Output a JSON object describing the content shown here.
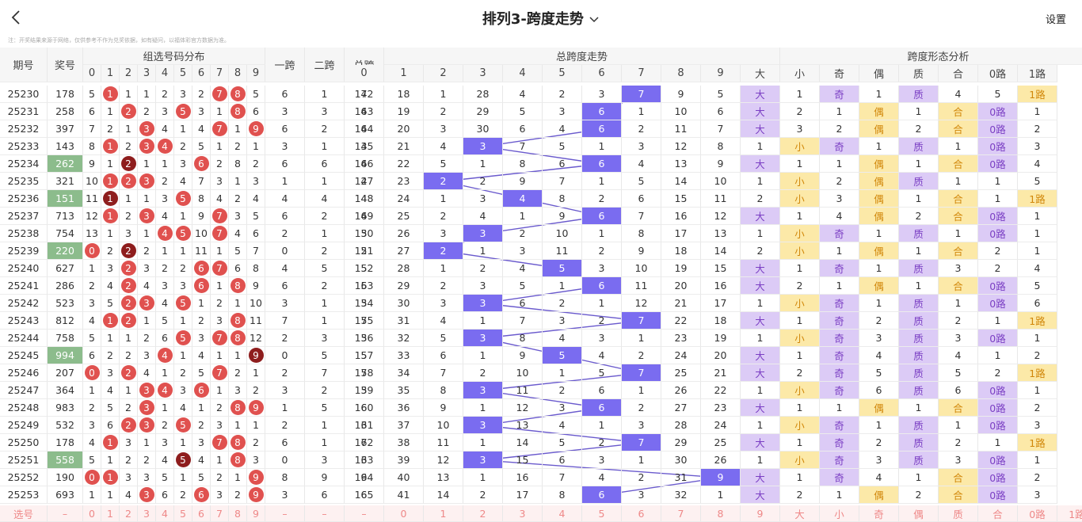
{
  "header": {
    "title": "排列3-跨度走势",
    "settings": "设置"
  },
  "note": "注：开奖结果来源于网络，仅供参考不作为兑奖依据，如有疑问，以福体彩官方数据为准。",
  "table": {
    "columns": {
      "period": "期号",
      "number": "奖号",
      "dist": "组选号码分布",
      "span1": "一跨",
      "span2": "二跨",
      "total": "总跨",
      "trend": "总跨度走势",
      "form": "跨度形态分析"
    },
    "dist_digits": [
      "0",
      "1",
      "2",
      "3",
      "4",
      "5",
      "6",
      "7",
      "8",
      "9"
    ],
    "trend_digits": [
      "0",
      "1",
      "2",
      "3",
      "4",
      "5",
      "6",
      "7",
      "8",
      "9"
    ],
    "form_labels": [
      "大",
      "小",
      "奇",
      "偶",
      "质",
      "合",
      "0路",
      "1路"
    ],
    "rows": [
      {
        "period": "25230",
        "number": "178",
        "dist": [
          "5",
          "1",
          "1",
          "1",
          "2",
          "3",
          "2",
          "7",
          "8",
          "5"
        ],
        "span1": "6",
        "span2": "1",
        "total": "7",
        "trend": [
          "142",
          "18",
          "1",
          "28",
          "4",
          "2",
          "3",
          "7",
          "9",
          "5"
        ],
        "form": [
          "大",
          "1",
          "奇",
          "1",
          "质",
          "4",
          "5",
          "1路"
        ]
      },
      {
        "period": "25231",
        "number": "258",
        "dist": [
          "6",
          "1",
          "2",
          "2",
          "3",
          "5",
          "3",
          "1",
          "8",
          "6"
        ],
        "span1": "3",
        "span2": "3",
        "total": "6",
        "trend": [
          "143",
          "19",
          "2",
          "29",
          "5",
          "3",
          "6",
          "1",
          "10",
          "6"
        ],
        "form": [
          "大",
          "2",
          "1",
          "偶",
          "1",
          "合",
          "0路",
          "1"
        ]
      },
      {
        "period": "25232",
        "number": "397",
        "dist": [
          "7",
          "2",
          "1",
          "3",
          "4",
          "1",
          "4",
          "7",
          "1",
          "9"
        ],
        "span1": "6",
        "span2": "2",
        "total": "6",
        "trend": [
          "144",
          "20",
          "3",
          "30",
          "6",
          "4",
          "6",
          "2",
          "11",
          "7"
        ],
        "form": [
          "大",
          "3",
          "2",
          "偶",
          "2",
          "合",
          "0路",
          "2"
        ]
      },
      {
        "period": "25233",
        "number": "143",
        "dist": [
          "8",
          "1",
          "2",
          "3",
          "4",
          "2",
          "5",
          "1",
          "2",
          "1"
        ],
        "span1": "3",
        "span2": "1",
        "total": "3",
        "trend": [
          "145",
          "21",
          "4",
          "3",
          "7",
          "5",
          "1",
          "3",
          "12",
          "8"
        ],
        "form": [
          "1",
          "小",
          "奇",
          "1",
          "质",
          "1",
          "0路",
          "3"
        ]
      },
      {
        "period": "25234",
        "number": "262",
        "dist": [
          "9",
          "1",
          "2",
          "1",
          "1",
          "3",
          "6",
          "2",
          "8",
          "2"
        ],
        "span1": "6",
        "span2": "6",
        "total": "6",
        "trend": [
          "146",
          "22",
          "5",
          "1",
          "8",
          "6",
          "6",
          "4",
          "13",
          "9"
        ],
        "form": [
          "大",
          "1",
          "1",
          "偶",
          "1",
          "合",
          "0路",
          "4"
        ]
      },
      {
        "period": "25235",
        "number": "321",
        "dist": [
          "10",
          "1",
          "2",
          "3",
          "2",
          "4",
          "7",
          "3",
          "1",
          "3"
        ],
        "span1": "1",
        "span2": "1",
        "total": "2",
        "trend": [
          "147",
          "23",
          "2",
          "2",
          "9",
          "7",
          "1",
          "5",
          "14",
          "10"
        ],
        "form": [
          "1",
          "小",
          "2",
          "偶",
          "质",
          "1",
          "1",
          "5"
        ]
      },
      {
        "period": "25236",
        "number": "151",
        "dist": [
          "11",
          "1",
          "1",
          "1",
          "3",
          "5",
          "8",
          "4",
          "2",
          "4"
        ],
        "span1": "4",
        "span2": "4",
        "total": "4",
        "trend": [
          "148",
          "24",
          "1",
          "3",
          "4",
          "8",
          "2",
          "6",
          "15",
          "11"
        ],
        "form": [
          "2",
          "小",
          "3",
          "偶",
          "1",
          "合",
          "1",
          "1路"
        ]
      },
      {
        "period": "25237",
        "number": "713",
        "dist": [
          "12",
          "1",
          "2",
          "3",
          "4",
          "1",
          "9",
          "7",
          "3",
          "5"
        ],
        "span1": "6",
        "span2": "2",
        "total": "6",
        "trend": [
          "149",
          "25",
          "2",
          "4",
          "1",
          "9",
          "6",
          "7",
          "16",
          "12"
        ],
        "form": [
          "大",
          "1",
          "4",
          "偶",
          "2",
          "合",
          "0路",
          "1"
        ]
      },
      {
        "period": "25238",
        "number": "754",
        "dist": [
          "13",
          "1",
          "3",
          "1",
          "4",
          "5",
          "10",
          "7",
          "4",
          "6"
        ],
        "span1": "2",
        "span2": "1",
        "total": "3",
        "trend": [
          "150",
          "26",
          "3",
          "3",
          "2",
          "10",
          "1",
          "8",
          "17",
          "13"
        ],
        "form": [
          "1",
          "小",
          "奇",
          "1",
          "质",
          "1",
          "0路",
          "1"
        ]
      },
      {
        "period": "25239",
        "number": "220",
        "dist": [
          "0",
          "2",
          "2",
          "2",
          "1",
          "1",
          "11",
          "1",
          "5",
          "7"
        ],
        "span1": "0",
        "span2": "2",
        "total": "2",
        "trend": [
          "151",
          "27",
          "2",
          "1",
          "3",
          "11",
          "2",
          "9",
          "18",
          "14"
        ],
        "form": [
          "2",
          "小",
          "1",
          "偶",
          "1",
          "合",
          "2",
          "1"
        ]
      },
      {
        "period": "25240",
        "number": "627",
        "dist": [
          "1",
          "3",
          "2",
          "3",
          "2",
          "2",
          "6",
          "7",
          "6",
          "8"
        ],
        "span1": "4",
        "span2": "5",
        "total": "5",
        "trend": [
          "152",
          "28",
          "1",
          "2",
          "4",
          "5",
          "3",
          "10",
          "19",
          "15"
        ],
        "form": [
          "大",
          "1",
          "奇",
          "1",
          "质",
          "3",
          "2",
          "4"
        ]
      },
      {
        "period": "25241",
        "number": "286",
        "dist": [
          "2",
          "4",
          "2",
          "4",
          "3",
          "3",
          "6",
          "1",
          "8",
          "9"
        ],
        "span1": "6",
        "span2": "2",
        "total": "6",
        "trend": [
          "153",
          "29",
          "2",
          "3",
          "5",
          "1",
          "6",
          "11",
          "20",
          "16"
        ],
        "form": [
          "大",
          "2",
          "1",
          "偶",
          "1",
          "合",
          "0路",
          "5"
        ]
      },
      {
        "period": "25242",
        "number": "523",
        "dist": [
          "3",
          "5",
          "2",
          "3",
          "4",
          "5",
          "1",
          "2",
          "1",
          "10"
        ],
        "span1": "3",
        "span2": "1",
        "total": "3",
        "trend": [
          "154",
          "30",
          "3",
          "3",
          "6",
          "2",
          "1",
          "12",
          "21",
          "17"
        ],
        "form": [
          "1",
          "小",
          "奇",
          "1",
          "质",
          "1",
          "0路",
          "6"
        ]
      },
      {
        "period": "25243",
        "number": "812",
        "dist": [
          "4",
          "1",
          "2",
          "1",
          "5",
          "1",
          "2",
          "3",
          "8",
          "11"
        ],
        "span1": "7",
        "span2": "1",
        "total": "7",
        "trend": [
          "155",
          "31",
          "4",
          "1",
          "7",
          "3",
          "2",
          "7",
          "22",
          "18"
        ],
        "form": [
          "大",
          "1",
          "奇",
          "2",
          "质",
          "2",
          "1",
          "1路"
        ]
      },
      {
        "period": "25244",
        "number": "758",
        "dist": [
          "5",
          "1",
          "1",
          "2",
          "6",
          "5",
          "3",
          "7",
          "8",
          "12"
        ],
        "span1": "2",
        "span2": "3",
        "total": "3",
        "trend": [
          "156",
          "32",
          "5",
          "3",
          "8",
          "4",
          "3",
          "1",
          "23",
          "19"
        ],
        "form": [
          "1",
          "小",
          "奇",
          "3",
          "质",
          "3",
          "0路",
          "1"
        ]
      },
      {
        "period": "25245",
        "number": "994",
        "dist": [
          "6",
          "2",
          "2",
          "3",
          "4",
          "1",
          "4",
          "1",
          "1",
          "9"
        ],
        "span1": "0",
        "span2": "5",
        "total": "5",
        "trend": [
          "157",
          "33",
          "6",
          "1",
          "9",
          "5",
          "4",
          "2",
          "24",
          "20"
        ],
        "form": [
          "大",
          "1",
          "奇",
          "4",
          "质",
          "4",
          "1",
          "2"
        ]
      },
      {
        "period": "25246",
        "number": "207",
        "dist": [
          "0",
          "3",
          "2",
          "4",
          "1",
          "2",
          "5",
          "7",
          "2",
          "1"
        ],
        "span1": "2",
        "span2": "7",
        "total": "7",
        "trend": [
          "158",
          "34",
          "7",
          "2",
          "10",
          "1",
          "5",
          "7",
          "25",
          "21"
        ],
        "form": [
          "大",
          "2",
          "奇",
          "5",
          "质",
          "5",
          "2",
          "1路"
        ]
      },
      {
        "period": "25247",
        "number": "364",
        "dist": [
          "1",
          "4",
          "1",
          "3",
          "4",
          "3",
          "6",
          "1",
          "3",
          "2"
        ],
        "span1": "3",
        "span2": "2",
        "total": "3",
        "trend": [
          "159",
          "35",
          "8",
          "3",
          "11",
          "2",
          "6",
          "1",
          "26",
          "22"
        ],
        "form": [
          "1",
          "小",
          "奇",
          "6",
          "质",
          "6",
          "0路",
          "1"
        ]
      },
      {
        "period": "25248",
        "number": "983",
        "dist": [
          "2",
          "5",
          "2",
          "3",
          "1",
          "4",
          "1",
          "2",
          "8",
          "9"
        ],
        "span1": "1",
        "span2": "5",
        "total": "6",
        "trend": [
          "160",
          "36",
          "9",
          "1",
          "12",
          "3",
          "6",
          "2",
          "27",
          "23"
        ],
        "form": [
          "大",
          "1",
          "1",
          "偶",
          "1",
          "合",
          "0路",
          "2"
        ]
      },
      {
        "period": "25249",
        "number": "532",
        "dist": [
          "3",
          "6",
          "2",
          "3",
          "2",
          "5",
          "2",
          "3",
          "1",
          "1"
        ],
        "span1": "2",
        "span2": "1",
        "total": "3",
        "trend": [
          "161",
          "37",
          "10",
          "3",
          "13",
          "4",
          "1",
          "3",
          "28",
          "24"
        ],
        "form": [
          "1",
          "小",
          "奇",
          "1",
          "质",
          "1",
          "0路",
          "3"
        ]
      },
      {
        "period": "25250",
        "number": "178",
        "dist": [
          "4",
          "1",
          "3",
          "1",
          "3",
          "1",
          "3",
          "7",
          "8",
          "2"
        ],
        "span1": "6",
        "span2": "1",
        "total": "7",
        "trend": [
          "162",
          "38",
          "11",
          "1",
          "14",
          "5",
          "2",
          "7",
          "29",
          "25"
        ],
        "form": [
          "大",
          "1",
          "奇",
          "2",
          "质",
          "2",
          "1",
          "1路"
        ]
      },
      {
        "period": "25251",
        "number": "558",
        "dist": [
          "5",
          "1",
          "2",
          "2",
          "4",
          "5",
          "4",
          "1",
          "8",
          "3"
        ],
        "span1": "0",
        "span2": "3",
        "total": "3",
        "trend": [
          "163",
          "39",
          "12",
          "3",
          "15",
          "6",
          "3",
          "1",
          "30",
          "26"
        ],
        "form": [
          "1",
          "小",
          "奇",
          "3",
          "质",
          "3",
          "0路",
          "1"
        ]
      },
      {
        "period": "25252",
        "number": "190",
        "dist": [
          "0",
          "1",
          "3",
          "3",
          "5",
          "1",
          "5",
          "2",
          "1",
          "9"
        ],
        "span1": "8",
        "span2": "9",
        "total": "9",
        "trend": [
          "164",
          "40",
          "13",
          "1",
          "16",
          "7",
          "4",
          "2",
          "31",
          "9"
        ],
        "form": [
          "大",
          "1",
          "奇",
          "4",
          "1",
          "合",
          "0路",
          "2"
        ]
      },
      {
        "period": "25253",
        "number": "693",
        "dist": [
          "1",
          "1",
          "4",
          "3",
          "6",
          "2",
          "6",
          "3",
          "2",
          "9"
        ],
        "span1": "3",
        "span2": "6",
        "total": "6",
        "trend": [
          "165",
          "41",
          "14",
          "2",
          "17",
          "8",
          "6",
          "3",
          "32",
          "1"
        ],
        "form": [
          "大",
          "2",
          "1",
          "偶",
          "2",
          "合",
          "0路",
          "3"
        ]
      }
    ],
    "footer": {
      "label": "选号",
      "cells": [
        "–",
        "0",
        "1",
        "2",
        "3",
        "4",
        "5",
        "6",
        "7",
        "8",
        "9",
        "–",
        "–",
        "–",
        "0",
        "1",
        "2",
        "3",
        "4",
        "5",
        "6",
        "7",
        "8",
        "9",
        "大",
        "小",
        "奇",
        "偶",
        "质",
        "合",
        "0路",
        "1路"
      ]
    }
  }
}
